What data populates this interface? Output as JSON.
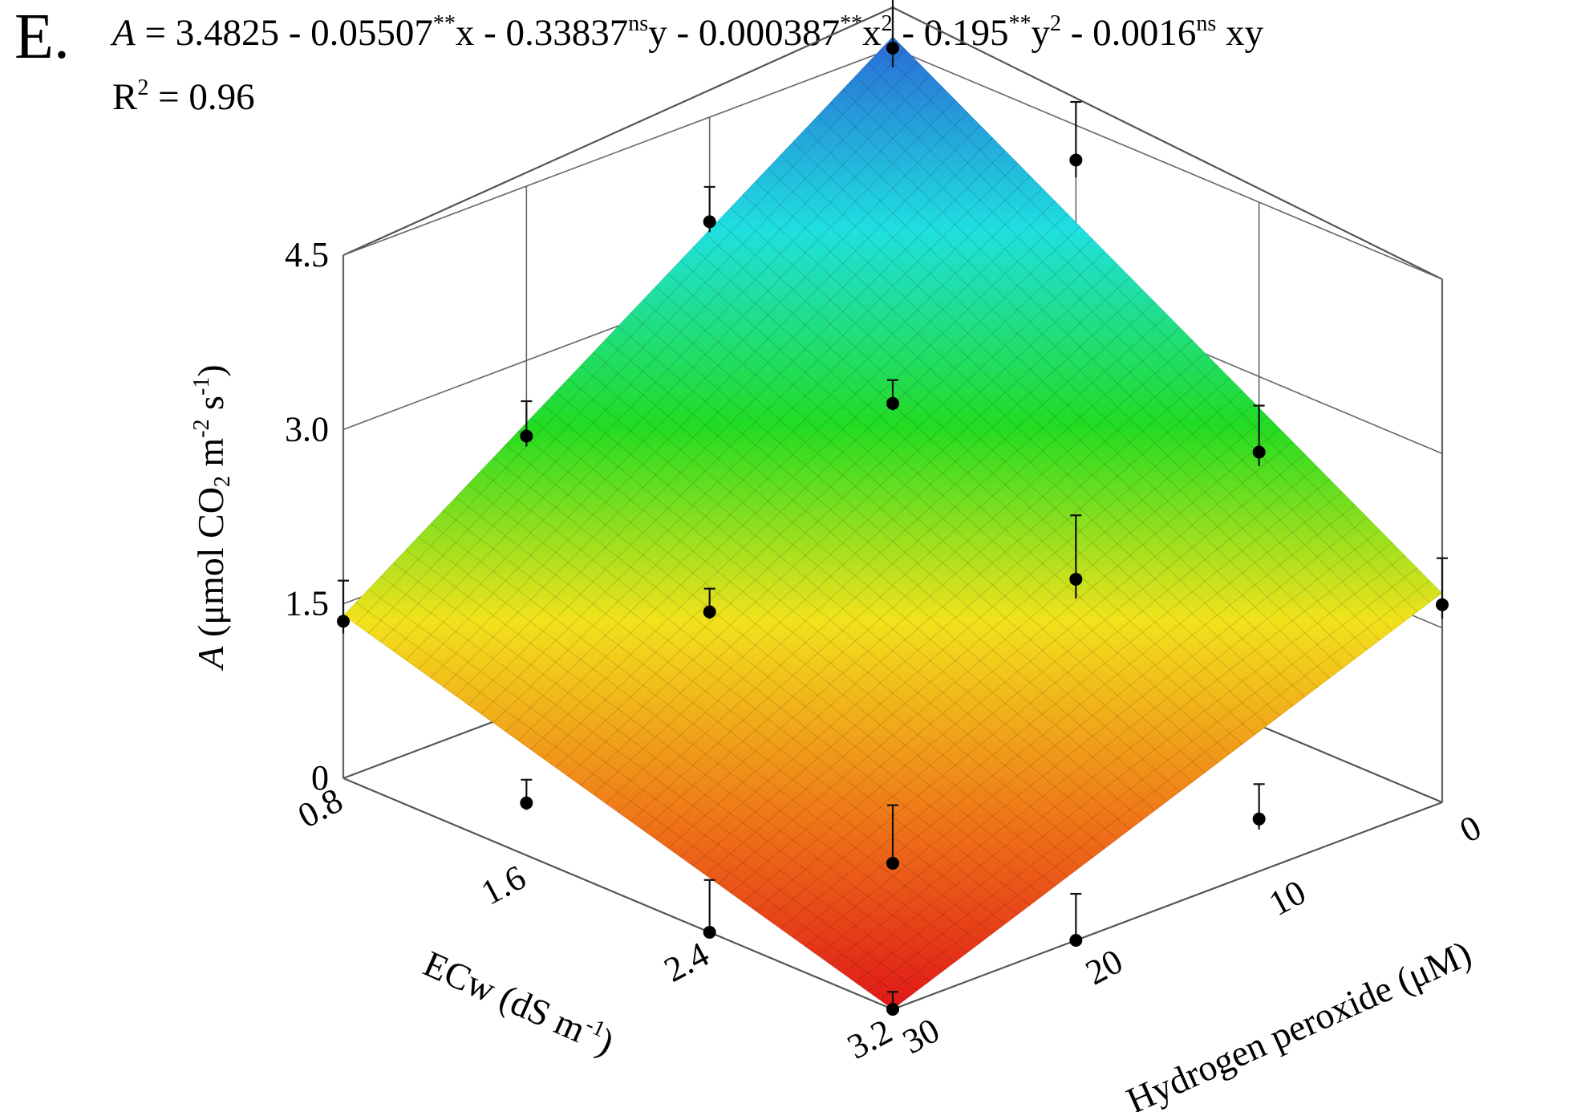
{
  "panel_letter": "E.",
  "equation": {
    "lhs": "A",
    "rhs_start": " = 3.4825 - 0.05507",
    "sig1": "**",
    "t1": "x - 0.33837",
    "sig2": "ns",
    "t2": "y - 0.000387",
    "sig3": "**",
    "t3": "x",
    "exp3": "2",
    "t3b": " - 0.195",
    "sig4": "**",
    "t4": "y",
    "exp4": "2",
    "t4b": " - 0.0016",
    "sig5": "ns",
    "t5": " xy"
  },
  "r2": {
    "prefix": "R",
    "exp": "2",
    "value": " = 0.96"
  },
  "chart_data": {
    "type": "surface3d",
    "z_axis": {
      "label_var": "A",
      "label_unit_pre": " (μmol CO",
      "label_sub": "2",
      "label_unit_mid": " m",
      "label_sup1": "-2",
      "label_unit_s": " s",
      "label_sup2": "-1",
      "label_close": ")",
      "ticks": [
        0,
        1.5,
        3.0,
        4.5
      ],
      "tick_labels": [
        "0",
        "1.5",
        "3.0",
        "4.5"
      ],
      "range": [
        0,
        4.5
      ]
    },
    "x_axis": {
      "label": "ECw (dS m",
      "label_sup": "-1",
      "label_close": ")",
      "ticks": [
        0.8,
        1.6,
        2.4,
        3.2
      ],
      "tick_labels": [
        "0.8",
        "1.6",
        "2.4",
        "3.2"
      ],
      "range": [
        0.8,
        3.2
      ]
    },
    "y_axis": {
      "label": "Hydrogen peroxide (μM)",
      "ticks": [
        0,
        10,
        20,
        30
      ],
      "tick_labels": [
        "0",
        "10",
        "20",
        "30"
      ],
      "range": [
        0,
        30
      ]
    },
    "surface_corners": [
      {
        "ecw": 0.8,
        "h2o2": 0,
        "A": 4.6
      },
      {
        "ecw": 0.8,
        "h2o2": 30,
        "A": 1.4
      },
      {
        "ecw": 3.2,
        "h2o2": 0,
        "A": 1.8
      },
      {
        "ecw": 3.2,
        "h2o2": 30,
        "A": 0.0
      }
    ],
    "color_scale": [
      "#e01818",
      "#f07818",
      "#f2e21c",
      "#22dc22",
      "#1fe0e0",
      "#2a6ad6"
    ],
    "observed_points": [
      {
        "ecw": 0.8,
        "h2o2": 0,
        "A": 4.5,
        "err": 0.55
      },
      {
        "ecw": 1.6,
        "h2o2": 0,
        "A": 4.2,
        "err": 0.5
      },
      {
        "ecw": 2.4,
        "h2o2": 0,
        "A": 2.35,
        "err": 0.4
      },
      {
        "ecw": 3.2,
        "h2o2": 0,
        "A": 1.7,
        "err": 0.4
      },
      {
        "ecw": 0.8,
        "h2o2": 10,
        "A": 3.6,
        "err": 0.3
      },
      {
        "ecw": 1.6,
        "h2o2": 10,
        "A": 2.7,
        "err": 0.2
      },
      {
        "ecw": 2.4,
        "h2o2": 10,
        "A": 1.85,
        "err": 0.55
      },
      {
        "ecw": 3.2,
        "h2o2": 10,
        "A": 0.45,
        "err": 0.3
      },
      {
        "ecw": 0.8,
        "h2o2": 20,
        "A": 2.35,
        "err": 0.3
      },
      {
        "ecw": 1.6,
        "h2o2": 20,
        "A": 1.5,
        "err": 0.2
      },
      {
        "ecw": 2.4,
        "h2o2": 20,
        "A": 0.0,
        "err": 0.5
      },
      {
        "ecw": 3.2,
        "h2o2": 20,
        "A": 0.0,
        "err": 0.4
      },
      {
        "ecw": 0.8,
        "h2o2": 30,
        "A": 1.35,
        "err": 0.35
      },
      {
        "ecw": 1.6,
        "h2o2": 30,
        "A": 0.45,
        "err": 0.2
      },
      {
        "ecw": 2.4,
        "h2o2": 30,
        "A": 0.0,
        "err": 0.45
      },
      {
        "ecw": 3.2,
        "h2o2": 30,
        "A": 0.0,
        "err": 0.15
      }
    ]
  }
}
